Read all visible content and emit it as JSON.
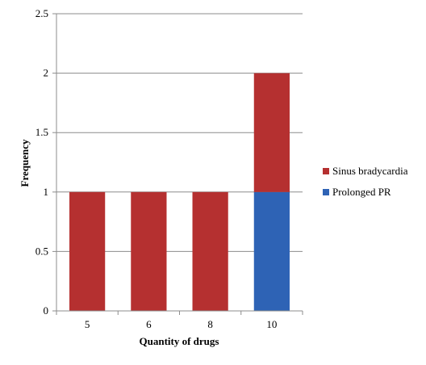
{
  "chart_data": {
    "type": "bar",
    "stacked": true,
    "categories": [
      "5",
      "6",
      "8",
      "10"
    ],
    "series": [
      {
        "name": "Prolonged PR",
        "color": "#2e63b5",
        "values": [
          0,
          0,
          0,
          1
        ]
      },
      {
        "name": "Sinus bradycardia",
        "color": "#b53030",
        "values": [
          1,
          1,
          1,
          1
        ]
      }
    ],
    "legend_order": [
      "Sinus bradycardia",
      "Prolonged PR"
    ],
    "legend_position": "right",
    "xlabel": "Quantity of drugs",
    "ylabel": "Frequency",
    "ylim": [
      0,
      2.5
    ],
    "yticks": [
      "0",
      "0.5",
      "1",
      "1.5",
      "2",
      "2.5"
    ],
    "grid": "horizontal",
    "gridline_color": "#8c8c8c",
    "axis_color": "#8c8c8c"
  }
}
